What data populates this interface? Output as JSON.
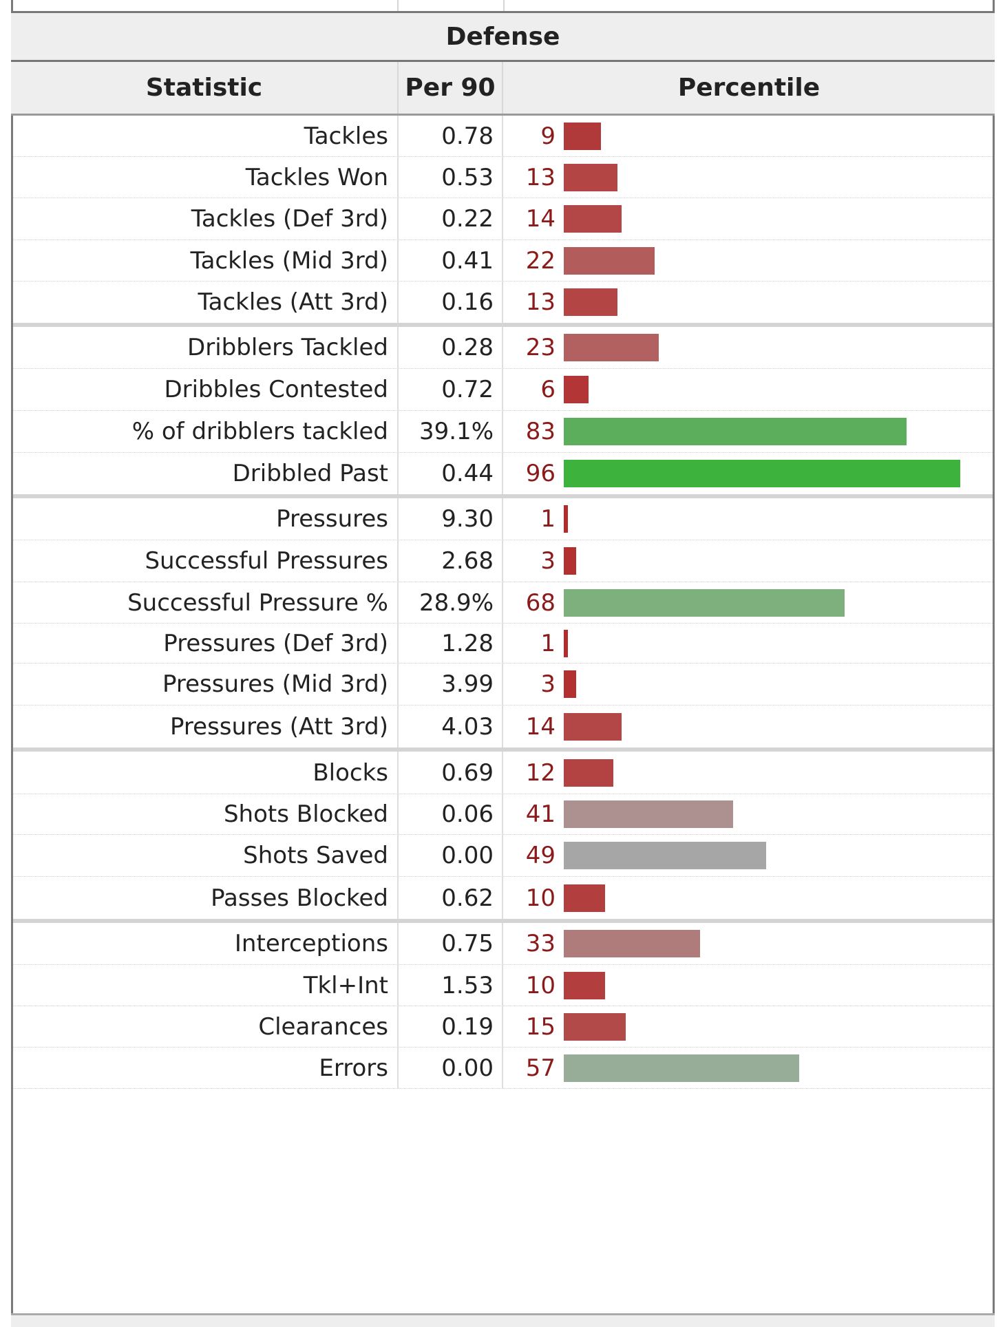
{
  "table": {
    "title": "Defense",
    "headers": {
      "statistic": "Statistic",
      "per90": "Per 90",
      "percentile": "Percentile"
    },
    "rows": [
      {
        "stat": "Tackles",
        "per90": "0.78",
        "percentile": 9,
        "color": "#b03a3a"
      },
      {
        "stat": "Tackles Won",
        "per90": "0.53",
        "percentile": 13,
        "color": "#b34545"
      },
      {
        "stat": "Tackles (Def 3rd)",
        "per90": "0.22",
        "percentile": 14,
        "color": "#b34747"
      },
      {
        "stat": "Tackles (Mid 3rd)",
        "per90": "0.41",
        "percentile": 22,
        "color": "#b35c5c"
      },
      {
        "stat": "Tackles (Att 3rd)",
        "per90": "0.16",
        "percentile": 13,
        "color": "#b34545",
        "group_end": true
      },
      {
        "stat": "Dribblers Tackled",
        "per90": "0.28",
        "percentile": 23,
        "color": "#b36060"
      },
      {
        "stat": "Dribbles Contested",
        "per90": "0.72",
        "percentile": 6,
        "color": "#b33535"
      },
      {
        "stat": "% of dribblers tackled",
        "per90": "39.1%",
        "percentile": 83,
        "color": "#5cae5c"
      },
      {
        "stat": "Dribbled Past",
        "per90": "0.44",
        "percentile": 96,
        "color": "#3db33d",
        "group_end": true
      },
      {
        "stat": "Pressures",
        "per90": "9.30",
        "percentile": 1,
        "color": "#b32b2b"
      },
      {
        "stat": "Successful Pressures",
        "per90": "2.68",
        "percentile": 3,
        "color": "#b33030"
      },
      {
        "stat": "Successful Pressure %",
        "per90": "28.9%",
        "percentile": 68,
        "color": "#7db07d"
      },
      {
        "stat": "Pressures (Def 3rd)",
        "per90": "1.28",
        "percentile": 1,
        "color": "#b32b2b"
      },
      {
        "stat": "Pressures (Mid 3rd)",
        "per90": "3.99",
        "percentile": 3,
        "color": "#b33030"
      },
      {
        "stat": "Pressures (Att 3rd)",
        "per90": "4.03",
        "percentile": 14,
        "color": "#b34747",
        "group_end": true
      },
      {
        "stat": "Blocks",
        "per90": "0.69",
        "percentile": 12,
        "color": "#b34343"
      },
      {
        "stat": "Shots Blocked",
        "per90": "0.06",
        "percentile": 41,
        "color": "#ad9090"
      },
      {
        "stat": "Shots Saved",
        "per90": "0.00",
        "percentile": 49,
        "color": "#a6a6a6"
      },
      {
        "stat": "Passes Blocked",
        "per90": "0.62",
        "percentile": 10,
        "color": "#b33e3e",
        "group_end": true
      },
      {
        "stat": "Interceptions",
        "per90": "0.75",
        "percentile": 33,
        "color": "#b07b7b"
      },
      {
        "stat": "Tkl+Int",
        "per90": "1.53",
        "percentile": 10,
        "color": "#b33e3e"
      },
      {
        "stat": "Clearances",
        "per90": "0.19",
        "percentile": 15,
        "color": "#b34a4a"
      },
      {
        "stat": "Errors",
        "per90": "0.00",
        "percentile": 57,
        "color": "#98ad98"
      }
    ]
  }
}
